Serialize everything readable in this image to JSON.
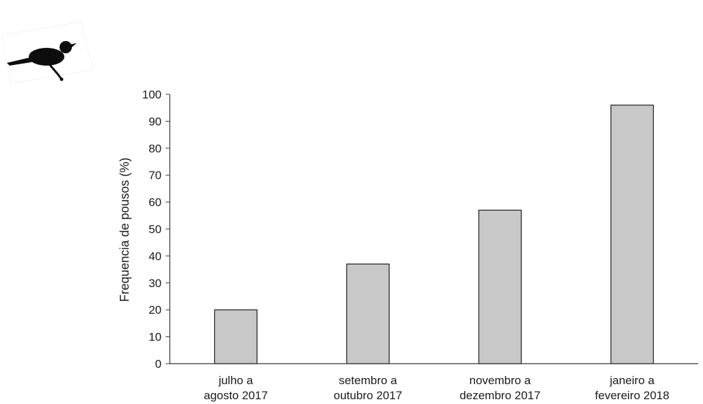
{
  "chart_data": {
    "type": "bar",
    "categories": [
      [
        "julho a",
        "agosto 2017"
      ],
      [
        "setembro a",
        "outubro 2017"
      ],
      [
        "novembro a",
        "dezembro 2017"
      ],
      [
        "janeiro a",
        "fevereiro 2018"
      ]
    ],
    "values": [
      20,
      37,
      57,
      96
    ],
    "ylabel": "Frequencia de pousos (%)",
    "xlabel": "",
    "ylim": [
      0,
      100
    ],
    "yticks": [
      0,
      10,
      20,
      30,
      40,
      50,
      60,
      70,
      80,
      90,
      100
    ],
    "grid": false,
    "bar_color": "#c8c8c8",
    "bar_stroke": "#1a1a1a",
    "axis_color": "#333333"
  },
  "decoration": {
    "icon": "bird-silhouette-icon"
  }
}
